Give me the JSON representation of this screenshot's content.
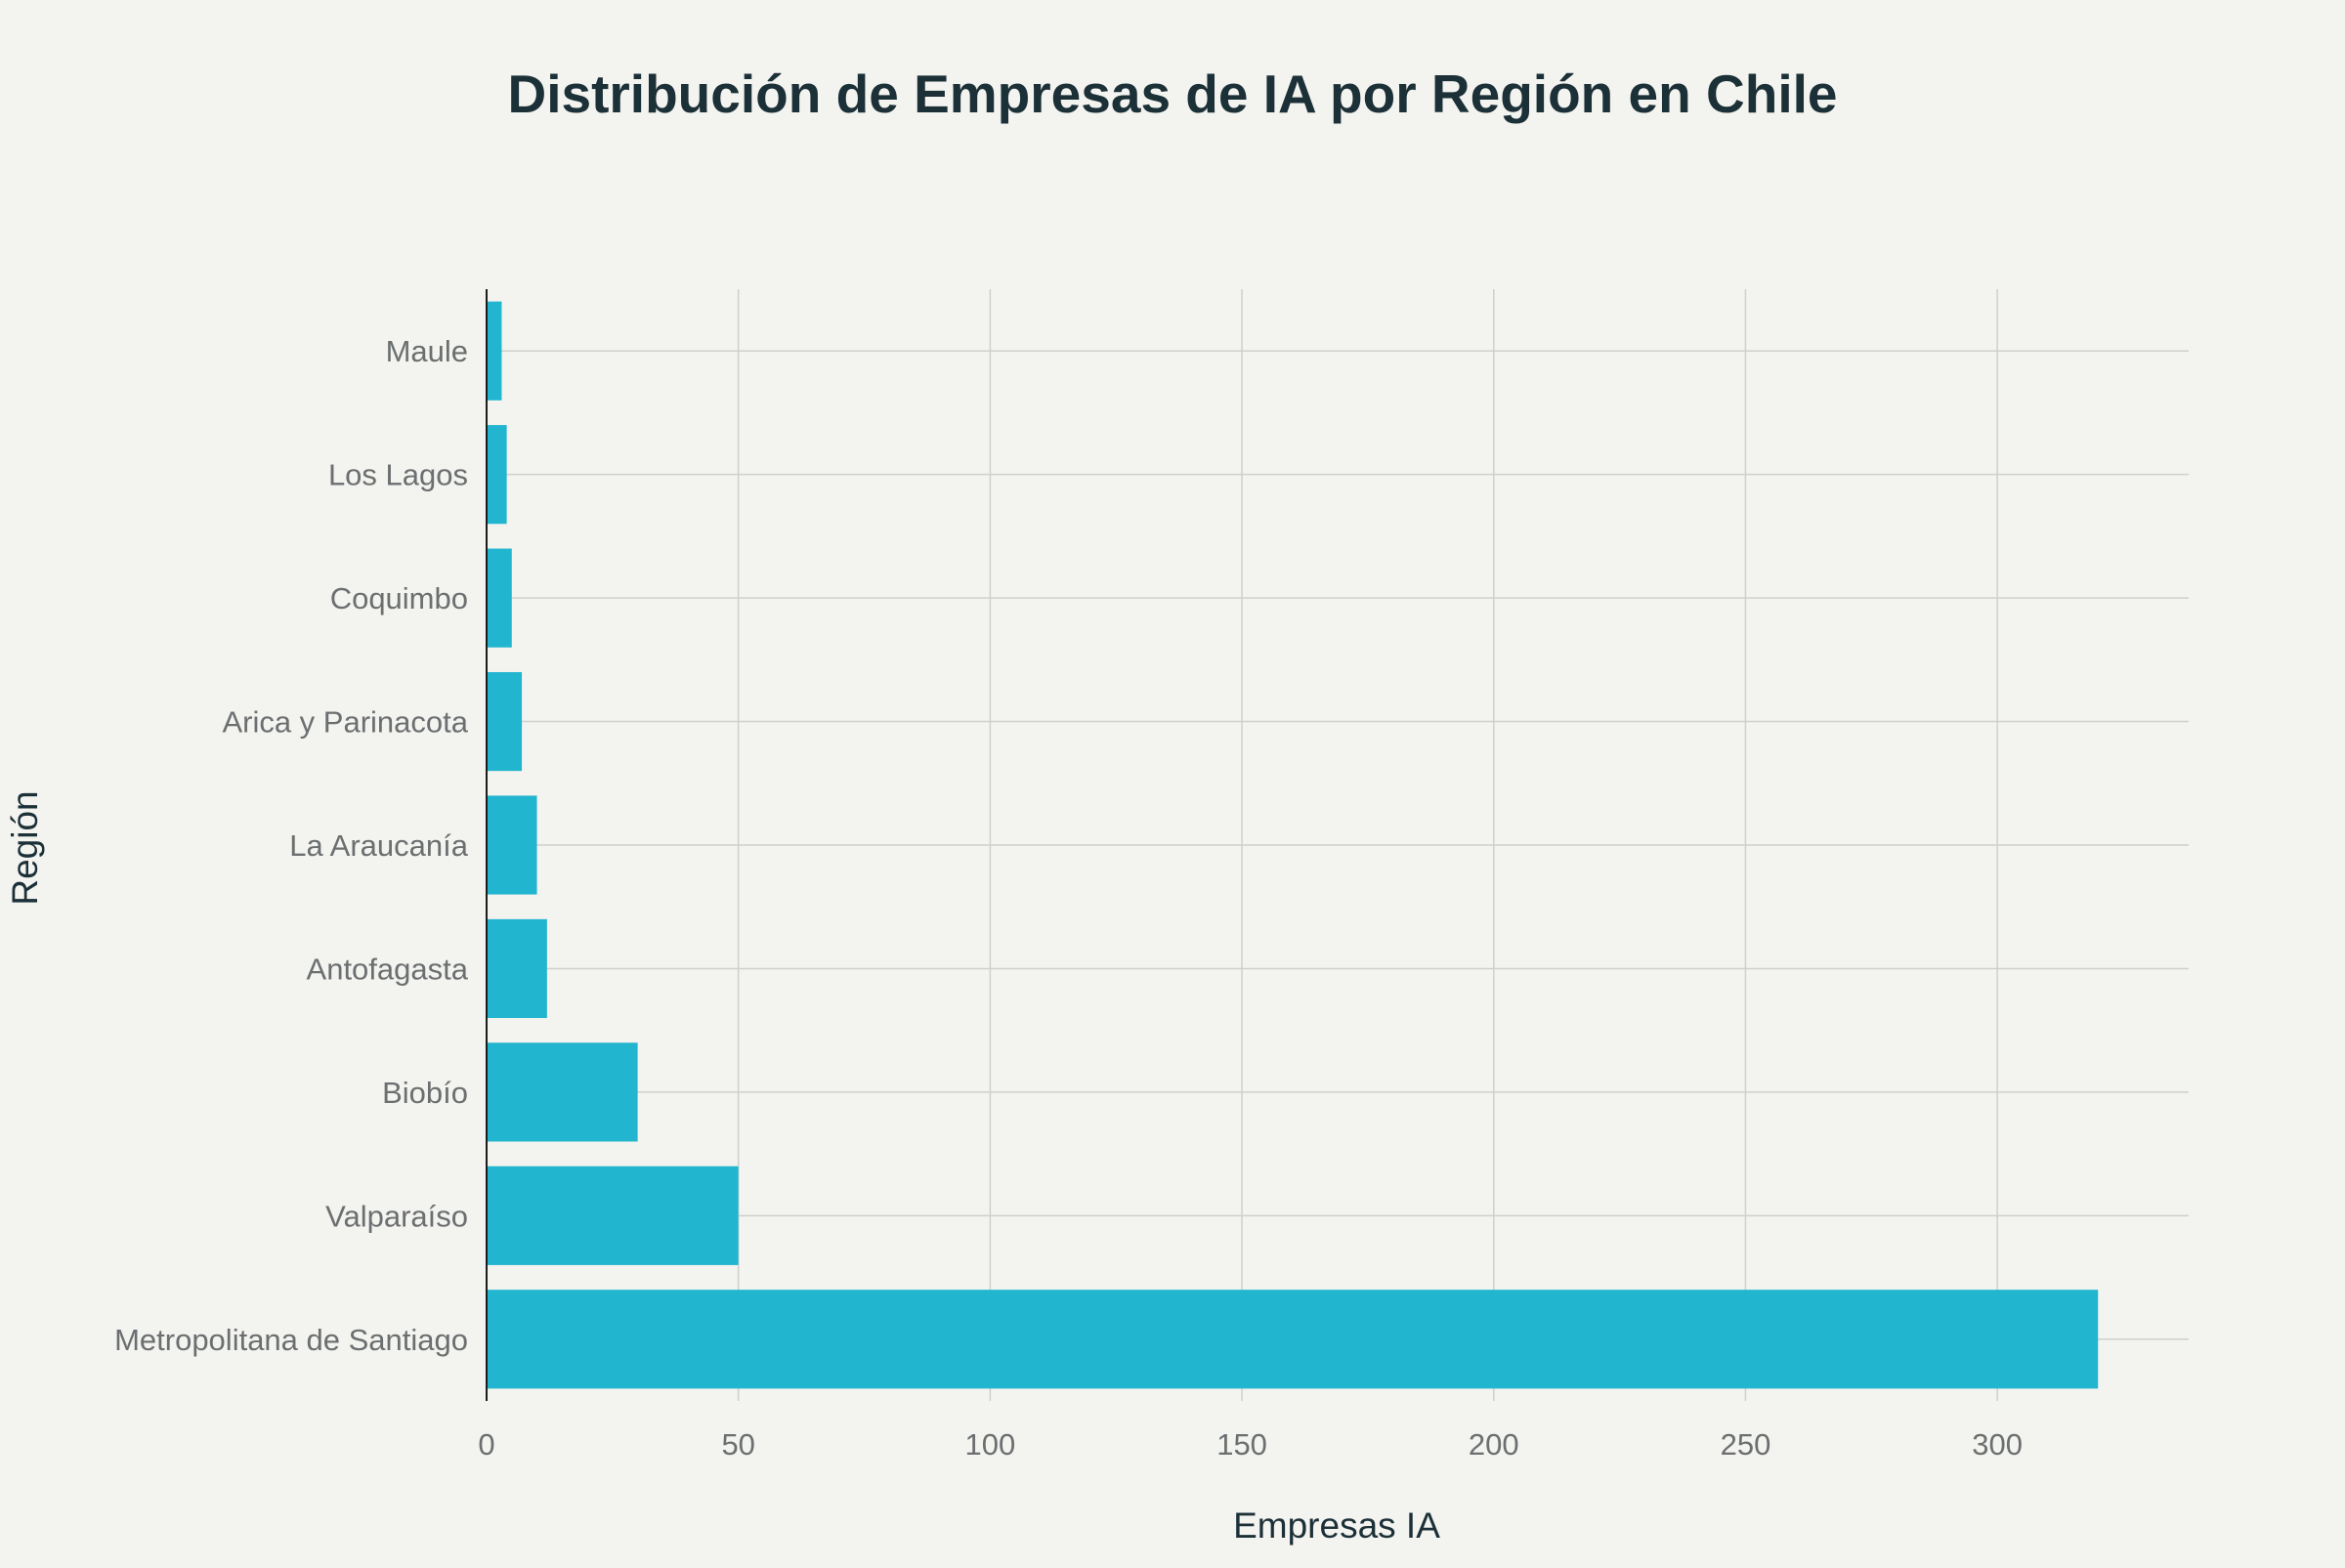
{
  "chart_data": {
    "type": "bar",
    "orientation": "horizontal",
    "title": "Distribución de Empresas de IA por Región en Chile",
    "xlabel": "Empresas IA",
    "ylabel": "Región",
    "xlim": [
      0,
      338
    ],
    "x_ticks": [
      0,
      50,
      100,
      150,
      200,
      250,
      300
    ],
    "grid": true,
    "bar_color": "#22b5cf",
    "categories": [
      "Metropolitana de Santiago",
      "Valparaíso",
      "Biobío",
      "Antofagasta",
      "La Araucanía",
      "Arica y Parinacota",
      "Coquimbo",
      "Los Lagos",
      "Maule"
    ],
    "values": [
      320,
      50,
      30,
      12,
      10,
      7,
      5,
      4,
      3
    ]
  }
}
